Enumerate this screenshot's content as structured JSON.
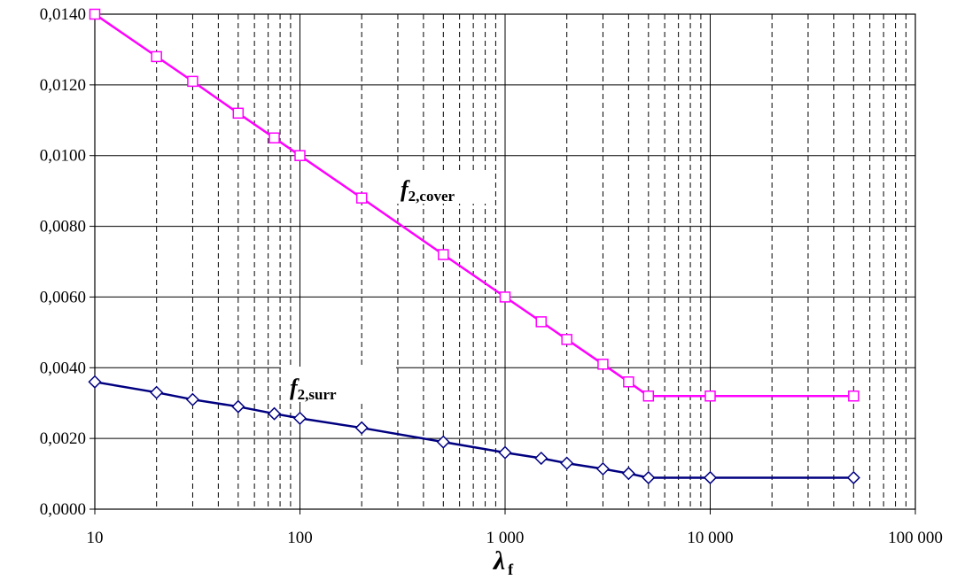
{
  "chart_data": {
    "type": "line",
    "xscale": "log",
    "xlim": [
      10,
      100000
    ],
    "ylim": [
      0,
      0.014
    ],
    "grid": true,
    "x_ticks": [
      "10",
      "100",
      "1 000",
      "10 000",
      "100 000"
    ],
    "y_ticks": [
      "0,0000",
      "0,0020",
      "0,0040",
      "0,0060",
      "0,0080",
      "0,0100",
      "0,0120",
      "0,0140"
    ],
    "xlabel": {
      "symbol": "λ",
      "subscript": "f"
    },
    "series": [
      {
        "name": {
          "main": "f",
          "subscript": "2,cover"
        },
        "color": "#ff00ff",
        "marker": "square",
        "x": [
          10,
          20,
          30,
          50,
          75,
          100,
          200,
          500,
          1000,
          1500,
          2000,
          3000,
          4000,
          5000,
          10000,
          50000
        ],
        "y": [
          0.014,
          0.0128,
          0.0121,
          0.0112,
          0.0105,
          0.01,
          0.0088,
          0.0072,
          0.006,
          0.0053,
          0.0048,
          0.0041,
          0.0036,
          0.0032,
          0.0032,
          0.0032
        ]
      },
      {
        "name": {
          "main": "f",
          "subscript": "2,surr"
        },
        "color": "#000080",
        "marker": "diamond",
        "x": [
          10,
          20,
          30,
          50,
          75,
          100,
          200,
          500,
          1000,
          1500,
          2000,
          3000,
          4000,
          5000,
          10000,
          50000
        ],
        "y": [
          0.0036,
          0.0033,
          0.0031,
          0.0029,
          0.0027,
          0.00257,
          0.0023,
          0.0019,
          0.0016,
          0.00144,
          0.0013,
          0.00114,
          0.00101,
          0.00089,
          0.00089,
          0.00089
        ]
      }
    ]
  }
}
